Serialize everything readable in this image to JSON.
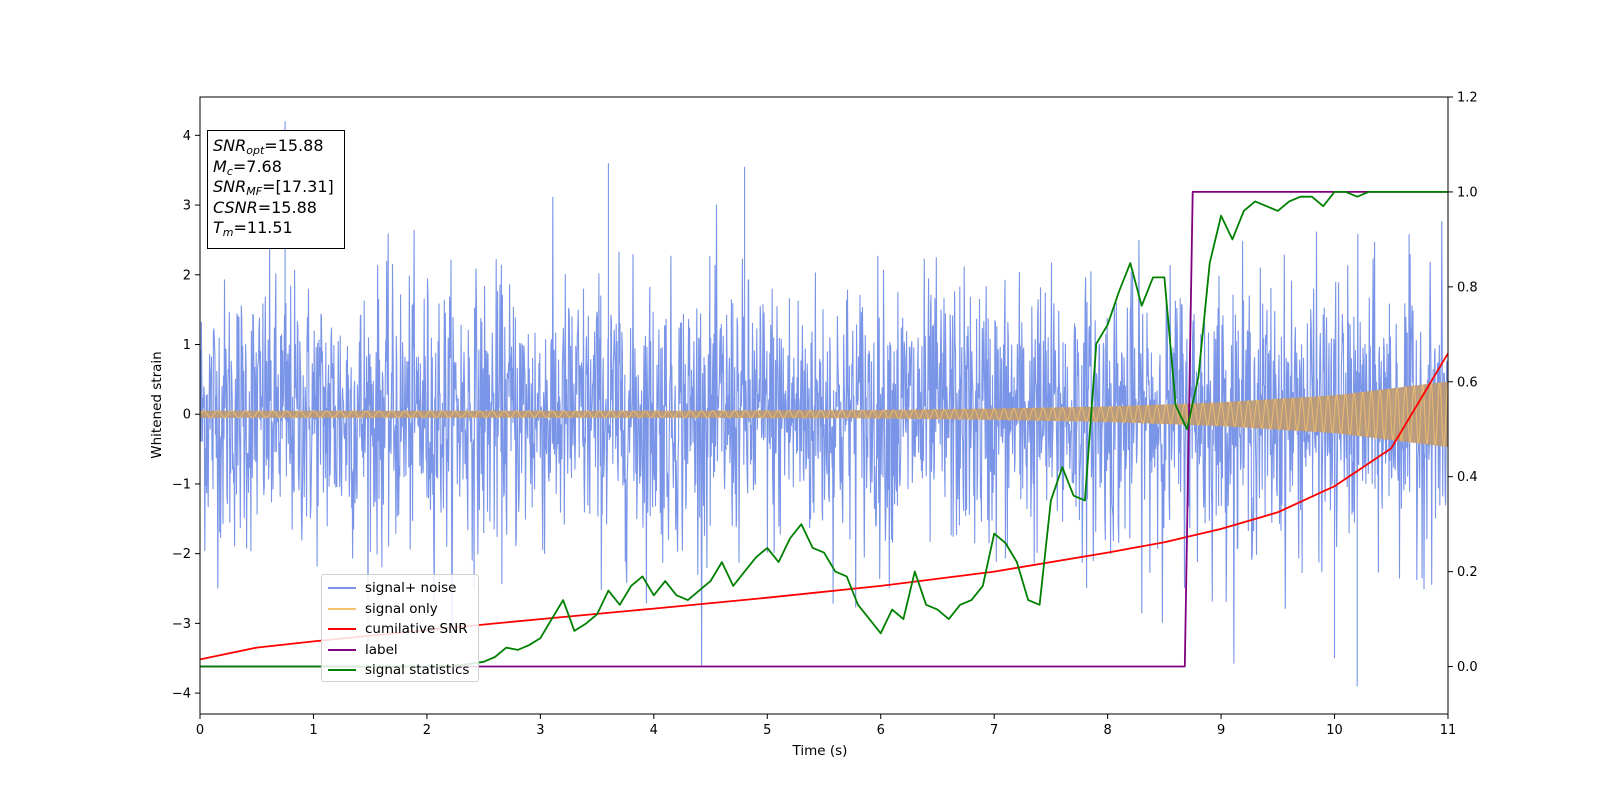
{
  "chart_data": {
    "type": "line",
    "title": "",
    "xlabel": "Time (s)",
    "ylabel": "Whitened strain",
    "y2label": "",
    "xlim": [
      0,
      11
    ],
    "ylim": [
      -4.3,
      4.55
    ],
    "y2lim": [
      -0.1,
      1.2
    ],
    "xticks": [
      "0",
      "1",
      "2",
      "3",
      "4",
      "5",
      "6",
      "7",
      "8",
      "9",
      "10",
      "11"
    ],
    "yticks": [
      "−4",
      "−3",
      "−2",
      "−1",
      "0",
      "1",
      "2",
      "3",
      "4"
    ],
    "y2ticks": [
      "0.0",
      "0.2",
      "0.4",
      "0.6",
      "0.8",
      "1.0",
      "1.2"
    ],
    "grid": false,
    "legend_position": "lower-left",
    "annotation": {
      "snr_opt": "15.88",
      "mc": "7.68",
      "snr_mf": "[17.31]",
      "csnr": "15.88",
      "tm": "11.51"
    },
    "series": [
      {
        "name": "signal+ noise",
        "axis": "left",
        "color": "#7a95e8",
        "description_values": "whitened strain noise, roughly ±1.5 typical with spikes to about ±3.6",
        "noise_sigma": 0.95,
        "extremes": [
          [
            0.75,
            4.2
          ],
          [
            3.6,
            3.6
          ],
          [
            10.2,
            -3.9
          ],
          [
            10.0,
            -3.5
          ],
          [
            4.8,
            3.55
          ]
        ]
      },
      {
        "name": "signal only",
        "axis": "left",
        "color": "#f5c26b",
        "envelope": {
          "x": [
            0,
            2,
            4,
            6,
            7,
            8,
            9,
            10,
            11
          ],
          "amp": [
            0.05,
            0.05,
            0.05,
            0.06,
            0.08,
            0.11,
            0.17,
            0.27,
            0.47
          ]
        }
      },
      {
        "name": "cumilative SNR",
        "axis": "right",
        "color": "#ff0000",
        "x": [
          0,
          0.5,
          1,
          2,
          3,
          4,
          5,
          6,
          7,
          8,
          8.5,
          9,
          9.5,
          10,
          10.5,
          11
        ],
        "y": [
          0.015,
          0.04,
          0.053,
          0.077,
          0.1,
          0.122,
          0.145,
          0.17,
          0.2,
          0.24,
          0.262,
          0.29,
          0.325,
          0.38,
          0.46,
          0.66
        ]
      },
      {
        "name": "label",
        "axis": "right",
        "color": "#800080",
        "x": [
          0,
          8.68,
          8.75,
          11
        ],
        "y": [
          0,
          0,
          1,
          1
        ]
      },
      {
        "name": "signal statistics",
        "axis": "right",
        "color": "#008000",
        "x": [
          0,
          1,
          2,
          2.3,
          2.5,
          2.6,
          2.7,
          2.8,
          2.9,
          3.0,
          3.1,
          3.2,
          3.3,
          3.4,
          3.5,
          3.6,
          3.7,
          3.8,
          3.9,
          4.0,
          4.1,
          4.2,
          4.3,
          4.4,
          4.5,
          4.6,
          4.7,
          4.8,
          4.9,
          5.0,
          5.1,
          5.2,
          5.3,
          5.4,
          5.5,
          5.6,
          5.7,
          5.8,
          5.9,
          6.0,
          6.1,
          6.2,
          6.3,
          6.4,
          6.5,
          6.6,
          6.7,
          6.8,
          6.9,
          7.0,
          7.1,
          7.2,
          7.3,
          7.4,
          7.5,
          7.6,
          7.7,
          7.8,
          7.9,
          8.0,
          8.1,
          8.2,
          8.3,
          8.4,
          8.5,
          8.6,
          8.7,
          8.8,
          8.9,
          9.0,
          9.1,
          9.2,
          9.3,
          9.4,
          9.5,
          9.6,
          9.7,
          9.8,
          9.9,
          10.0,
          10.1,
          10.2,
          10.3,
          10.4,
          10.5,
          10.6,
          10.7,
          10.8,
          10.9,
          11.0
        ],
        "y": [
          0.0,
          0.0,
          0.0,
          0.003,
          0.01,
          0.02,
          0.04,
          0.035,
          0.045,
          0.06,
          0.1,
          0.14,
          0.075,
          0.09,
          0.11,
          0.16,
          0.13,
          0.17,
          0.19,
          0.15,
          0.18,
          0.15,
          0.14,
          0.16,
          0.18,
          0.22,
          0.17,
          0.2,
          0.23,
          0.25,
          0.22,
          0.27,
          0.3,
          0.25,
          0.24,
          0.2,
          0.19,
          0.13,
          0.1,
          0.07,
          0.12,
          0.1,
          0.2,
          0.13,
          0.12,
          0.1,
          0.13,
          0.14,
          0.17,
          0.28,
          0.26,
          0.22,
          0.14,
          0.13,
          0.35,
          0.42,
          0.36,
          0.35,
          0.68,
          0.72,
          0.79,
          0.85,
          0.76,
          0.82,
          0.82,
          0.55,
          0.5,
          0.61,
          0.85,
          0.95,
          0.9,
          0.96,
          0.98,
          0.97,
          0.96,
          0.98,
          0.99,
          0.99,
          0.97,
          1.0,
          1.0,
          0.99,
          1.0,
          1.0,
          1.0,
          1.0,
          1.0,
          1.0,
          1.0,
          1.0
        ]
      }
    ]
  }
}
